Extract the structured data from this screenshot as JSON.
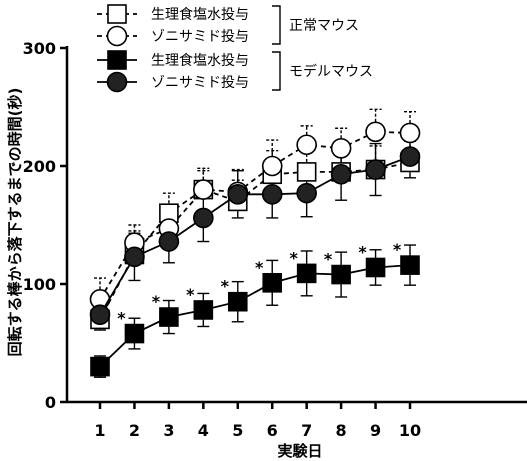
{
  "chart_data": {
    "type": "line",
    "xlabel": "実験日",
    "ylabel": "回転する棒から落下するまでの時間(秒)",
    "x": [
      1,
      2,
      3,
      4,
      5,
      6,
      7,
      8,
      9,
      10
    ],
    "xlim": [
      0.5,
      10.5
    ],
    "ylim": [
      0,
      300
    ],
    "yticks": [
      0,
      100,
      200,
      300
    ],
    "grid": false,
    "legend_position": "top-left",
    "legend_groups": [
      {
        "label": "正常マウス",
        "series": [
          0,
          1
        ]
      },
      {
        "label": "モデルマウス",
        "series": [
          2,
          3
        ]
      }
    ],
    "series": [
      {
        "name": "生理食塩水投与",
        "marker": "square",
        "fill": "#ffffff",
        "line": "dashed",
        "values": [
          70,
          125,
          160,
          180,
          170,
          193,
          195,
          195,
          197,
          203
        ],
        "errors": [
          13,
          20,
          17,
          16,
          18,
          20,
          20,
          20,
          20,
          18
        ],
        "error_direction": "up"
      },
      {
        "name": "ゾニサミド投与",
        "marker": "circle",
        "fill": "#ffffff",
        "line": "dashed",
        "values": [
          87,
          135,
          147,
          180,
          178,
          200,
          218,
          215,
          229,
          228
        ],
        "errors": [
          18,
          15,
          15,
          18,
          19,
          22,
          16,
          17,
          19,
          18
        ],
        "error_direction": "up"
      },
      {
        "name": "生理食塩水投与",
        "marker": "square",
        "fill": "#000000",
        "line": "solid",
        "values": [
          30,
          58,
          72,
          78,
          85,
          101,
          109,
          108,
          114,
          116
        ],
        "errors": [
          9,
          13,
          14,
          14,
          17,
          19,
          19,
          19,
          15,
          17
        ],
        "error_direction": "both",
        "significance": [
          "",
          "*",
          "*",
          "*",
          "*",
          "*",
          "*",
          "*",
          "*",
          "*"
        ]
      },
      {
        "name": "ゾニサミド投与",
        "marker": "circle",
        "fill": "#222222",
        "line": "solid",
        "values": [
          74,
          123,
          136,
          156,
          176,
          176,
          177,
          193,
          197,
          208
        ],
        "errors": [
          13,
          20,
          18,
          20,
          20,
          20,
          20,
          22,
          22,
          18
        ],
        "error_direction": "both"
      }
    ]
  }
}
